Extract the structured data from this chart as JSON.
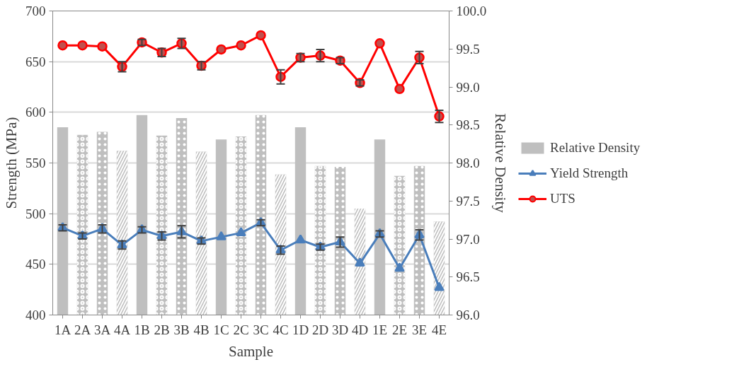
{
  "chart_data": {
    "type": "line",
    "xlabel": "Sample",
    "ylabel": "Strength (MPa)",
    "y2label": "Relative Density",
    "categories": [
      "1A",
      "2A",
      "3A",
      "4A",
      "1B",
      "2B",
      "3B",
      "4B",
      "1C",
      "2C",
      "3C",
      "4C",
      "1D",
      "2D",
      "3D",
      "4D",
      "1E",
      "2E",
      "3E",
      "4E"
    ],
    "series": [
      {
        "name": "Relative Density",
        "type": "bar",
        "axis": "y2",
        "color": "#bfbfbf",
        "values": [
          98.47,
          98.37,
          98.41,
          98.16,
          98.63,
          98.36,
          98.59,
          98.15,
          98.31,
          98.35,
          98.63,
          97.85,
          98.47,
          97.96,
          97.95,
          97.4,
          98.31,
          97.83,
          97.96,
          97.23
        ]
      },
      {
        "name": "Yield Strength",
        "color": "#4a7ebb",
        "marker": "triangle",
        "values": [
          486,
          478,
          485,
          469,
          484,
          478,
          482,
          473,
          477,
          481,
          491,
          464,
          474,
          467,
          472,
          451,
          480,
          446,
          479,
          427
        ],
        "errors": [
          3,
          3,
          4,
          4,
          3,
          4,
          6,
          3,
          null,
          null,
          3,
          4,
          null,
          3,
          5,
          null,
          3,
          null,
          5,
          null
        ]
      },
      {
        "name": "UTS",
        "color": "#ff0000",
        "marker": "circle",
        "values": [
          666,
          666,
          665,
          645,
          669,
          659,
          668,
          646,
          662,
          666,
          676,
          635,
          654,
          656,
          651,
          629,
          668,
          623,
          654,
          596
        ],
        "errors": [
          null,
          null,
          null,
          5,
          3,
          4,
          5,
          4,
          null,
          null,
          null,
          7,
          4,
          6,
          3,
          3,
          null,
          null,
          6,
          6
        ]
      }
    ],
    "ylim": [
      400,
      700
    ],
    "yticks": [
      400,
      450,
      500,
      550,
      600,
      650,
      700
    ],
    "y2lim": [
      96,
      100
    ],
    "y2ticks": [
      {
        "value": 96,
        "label": "96.0"
      },
      {
        "value": 96.5,
        "label": "96.5"
      },
      {
        "value": 97,
        "label": "97.0"
      },
      {
        "value": 97.5,
        "label": "97.5"
      },
      {
        "value": 98,
        "label": "98.0"
      },
      {
        "value": 98.5,
        "label": "98.5"
      },
      {
        "value": 99,
        "label": "99.0"
      },
      {
        "value": 99.5,
        "label": "99.5"
      },
      {
        "value": 100,
        "label": "100.0"
      }
    ],
    "grid": "y",
    "legend": "right"
  }
}
